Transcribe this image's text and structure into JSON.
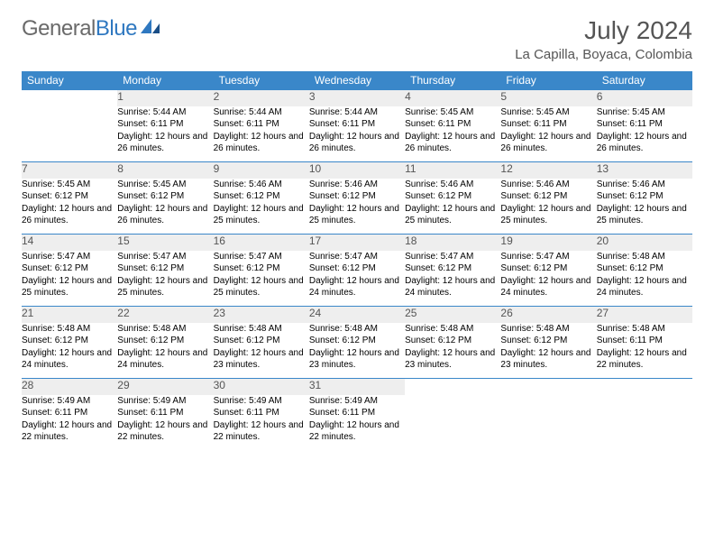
{
  "logo": {
    "part1": "General",
    "part2": "Blue"
  },
  "title": "July 2024",
  "location": "La Capilla, Boyaca, Colombia",
  "colors": {
    "header_bg": "#3a87c9",
    "header_text": "#ffffff",
    "daynum_bg": "#eeeeee",
    "daynum_text": "#555555",
    "border": "#3a87c9",
    "body_text": "#000000",
    "title_text": "#555555",
    "logo_gray": "#6a6a6a",
    "logo_blue": "#2f78c0"
  },
  "fonts": {
    "family": "Arial",
    "title_size_pt": 21,
    "loc_size_pt": 11,
    "header_size_pt": 9,
    "cell_size_pt": 7.5
  },
  "columns": [
    "Sunday",
    "Monday",
    "Tuesday",
    "Wednesday",
    "Thursday",
    "Friday",
    "Saturday"
  ],
  "weeks": [
    {
      "nums": [
        "",
        "1",
        "2",
        "3",
        "4",
        "5",
        "6"
      ],
      "cells": [
        null,
        {
          "sunrise": "Sunrise: 5:44 AM",
          "sunset": "Sunset: 6:11 PM",
          "daylight": "Daylight: 12 hours and 26 minutes."
        },
        {
          "sunrise": "Sunrise: 5:44 AM",
          "sunset": "Sunset: 6:11 PM",
          "daylight": "Daylight: 12 hours and 26 minutes."
        },
        {
          "sunrise": "Sunrise: 5:44 AM",
          "sunset": "Sunset: 6:11 PM",
          "daylight": "Daylight: 12 hours and 26 minutes."
        },
        {
          "sunrise": "Sunrise: 5:45 AM",
          "sunset": "Sunset: 6:11 PM",
          "daylight": "Daylight: 12 hours and 26 minutes."
        },
        {
          "sunrise": "Sunrise: 5:45 AM",
          "sunset": "Sunset: 6:11 PM",
          "daylight": "Daylight: 12 hours and 26 minutes."
        },
        {
          "sunrise": "Sunrise: 5:45 AM",
          "sunset": "Sunset: 6:11 PM",
          "daylight": "Daylight: 12 hours and 26 minutes."
        }
      ]
    },
    {
      "nums": [
        "7",
        "8",
        "9",
        "10",
        "11",
        "12",
        "13"
      ],
      "cells": [
        {
          "sunrise": "Sunrise: 5:45 AM",
          "sunset": "Sunset: 6:12 PM",
          "daylight": "Daylight: 12 hours and 26 minutes."
        },
        {
          "sunrise": "Sunrise: 5:45 AM",
          "sunset": "Sunset: 6:12 PM",
          "daylight": "Daylight: 12 hours and 26 minutes."
        },
        {
          "sunrise": "Sunrise: 5:46 AM",
          "sunset": "Sunset: 6:12 PM",
          "daylight": "Daylight: 12 hours and 25 minutes."
        },
        {
          "sunrise": "Sunrise: 5:46 AM",
          "sunset": "Sunset: 6:12 PM",
          "daylight": "Daylight: 12 hours and 25 minutes."
        },
        {
          "sunrise": "Sunrise: 5:46 AM",
          "sunset": "Sunset: 6:12 PM",
          "daylight": "Daylight: 12 hours and 25 minutes."
        },
        {
          "sunrise": "Sunrise: 5:46 AM",
          "sunset": "Sunset: 6:12 PM",
          "daylight": "Daylight: 12 hours and 25 minutes."
        },
        {
          "sunrise": "Sunrise: 5:46 AM",
          "sunset": "Sunset: 6:12 PM",
          "daylight": "Daylight: 12 hours and 25 minutes."
        }
      ]
    },
    {
      "nums": [
        "14",
        "15",
        "16",
        "17",
        "18",
        "19",
        "20"
      ],
      "cells": [
        {
          "sunrise": "Sunrise: 5:47 AM",
          "sunset": "Sunset: 6:12 PM",
          "daylight": "Daylight: 12 hours and 25 minutes."
        },
        {
          "sunrise": "Sunrise: 5:47 AM",
          "sunset": "Sunset: 6:12 PM",
          "daylight": "Daylight: 12 hours and 25 minutes."
        },
        {
          "sunrise": "Sunrise: 5:47 AM",
          "sunset": "Sunset: 6:12 PM",
          "daylight": "Daylight: 12 hours and 25 minutes."
        },
        {
          "sunrise": "Sunrise: 5:47 AM",
          "sunset": "Sunset: 6:12 PM",
          "daylight": "Daylight: 12 hours and 24 minutes."
        },
        {
          "sunrise": "Sunrise: 5:47 AM",
          "sunset": "Sunset: 6:12 PM",
          "daylight": "Daylight: 12 hours and 24 minutes."
        },
        {
          "sunrise": "Sunrise: 5:47 AM",
          "sunset": "Sunset: 6:12 PM",
          "daylight": "Daylight: 12 hours and 24 minutes."
        },
        {
          "sunrise": "Sunrise: 5:48 AM",
          "sunset": "Sunset: 6:12 PM",
          "daylight": "Daylight: 12 hours and 24 minutes."
        }
      ]
    },
    {
      "nums": [
        "21",
        "22",
        "23",
        "24",
        "25",
        "26",
        "27"
      ],
      "cells": [
        {
          "sunrise": "Sunrise: 5:48 AM",
          "sunset": "Sunset: 6:12 PM",
          "daylight": "Daylight: 12 hours and 24 minutes."
        },
        {
          "sunrise": "Sunrise: 5:48 AM",
          "sunset": "Sunset: 6:12 PM",
          "daylight": "Daylight: 12 hours and 24 minutes."
        },
        {
          "sunrise": "Sunrise: 5:48 AM",
          "sunset": "Sunset: 6:12 PM",
          "daylight": "Daylight: 12 hours and 23 minutes."
        },
        {
          "sunrise": "Sunrise: 5:48 AM",
          "sunset": "Sunset: 6:12 PM",
          "daylight": "Daylight: 12 hours and 23 minutes."
        },
        {
          "sunrise": "Sunrise: 5:48 AM",
          "sunset": "Sunset: 6:12 PM",
          "daylight": "Daylight: 12 hours and 23 minutes."
        },
        {
          "sunrise": "Sunrise: 5:48 AM",
          "sunset": "Sunset: 6:12 PM",
          "daylight": "Daylight: 12 hours and 23 minutes."
        },
        {
          "sunrise": "Sunrise: 5:48 AM",
          "sunset": "Sunset: 6:11 PM",
          "daylight": "Daylight: 12 hours and 22 minutes."
        }
      ]
    },
    {
      "nums": [
        "28",
        "29",
        "30",
        "31",
        "",
        "",
        ""
      ],
      "cells": [
        {
          "sunrise": "Sunrise: 5:49 AM",
          "sunset": "Sunset: 6:11 PM",
          "daylight": "Daylight: 12 hours and 22 minutes."
        },
        {
          "sunrise": "Sunrise: 5:49 AM",
          "sunset": "Sunset: 6:11 PM",
          "daylight": "Daylight: 12 hours and 22 minutes."
        },
        {
          "sunrise": "Sunrise: 5:49 AM",
          "sunset": "Sunset: 6:11 PM",
          "daylight": "Daylight: 12 hours and 22 minutes."
        },
        {
          "sunrise": "Sunrise: 5:49 AM",
          "sunset": "Sunset: 6:11 PM",
          "daylight": "Daylight: 12 hours and 22 minutes."
        },
        null,
        null,
        null
      ]
    }
  ]
}
